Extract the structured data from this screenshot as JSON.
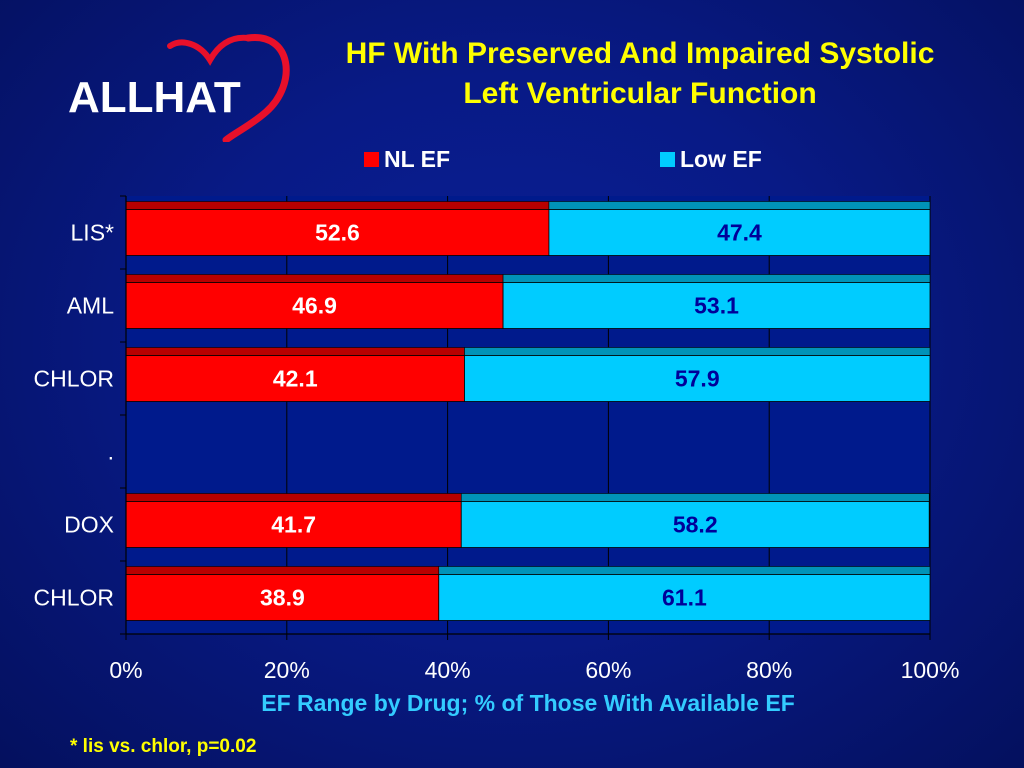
{
  "logo": {
    "text": "ALLHAT",
    "heart_color": "#e8102a"
  },
  "title": {
    "line1": "HF With Preserved And Impaired Systolic",
    "line2": "Left Ventricular Function"
  },
  "legend": [
    {
      "label": "NL EF",
      "color": "#ff0000"
    },
    {
      "label": "Low EF",
      "color": "#00ccff"
    }
  ],
  "chart_data": {
    "type": "bar",
    "orientation": "horizontal",
    "stacked": "100%",
    "categories": [
      "LIS*",
      "AML",
      "CHLOR",
      ".",
      "DOX",
      "CHLOR"
    ],
    "series": [
      {
        "name": "NL EF",
        "color": "#ff0000",
        "values": [
          52.6,
          46.9,
          42.1,
          null,
          41.7,
          38.9
        ]
      },
      {
        "name": "Low EF",
        "color": "#00ccff",
        "values": [
          47.4,
          53.1,
          57.9,
          null,
          58.2,
          61.1
        ]
      }
    ],
    "data_labels": {
      "NL EF": [
        "52.6",
        "46.9",
        "42.1",
        "",
        "41.7",
        "38.9"
      ],
      "Low EF": [
        "47.4",
        "53.1",
        "57.9",
        "",
        "58.2",
        "61.1"
      ]
    },
    "xticks": [
      "0%",
      "20%",
      "40%",
      "60%",
      "80%",
      "100%"
    ],
    "xlim": [
      0,
      100
    ],
    "xlabel": "EF Range by Drug; % of Those With Available EF",
    "ylabel": "",
    "grid": true,
    "legend_position": "top"
  },
  "footnote": "* lis vs. chlor, p=0.02"
}
